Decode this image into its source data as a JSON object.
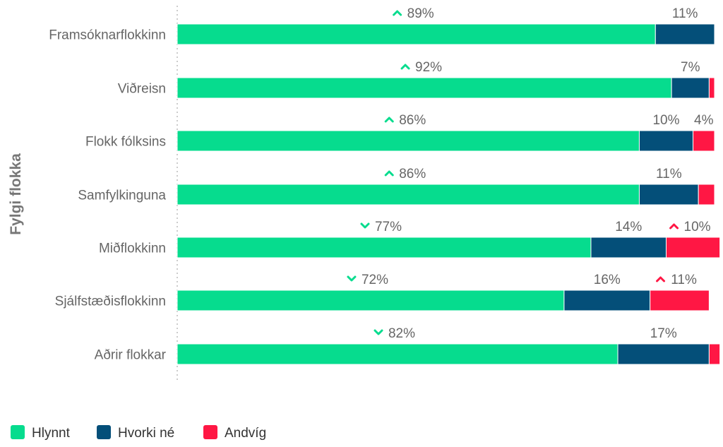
{
  "chart_data": {
    "type": "bar",
    "orientation": "horizontal",
    "stacked": true,
    "percent": true,
    "ylabel": "Fylgi flokka",
    "categories": [
      "Framsóknarflokkinn",
      "Viðreisn",
      "Flokk fólksins",
      "Samfylkinguna",
      "Miðflokkinn",
      "Sjálfstæðisflokkinn",
      "Aðrir flokkar"
    ],
    "series": [
      {
        "name": "Hlynnt",
        "color": "#06DC8E",
        "values": [
          89,
          92,
          86,
          86,
          77,
          72,
          82
        ],
        "labels": [
          "89%",
          "92%",
          "86%",
          "86%",
          "77%",
          "72%",
          "82%"
        ],
        "trend": [
          "up",
          "up",
          "up",
          "up",
          "down",
          "down",
          "down"
        ]
      },
      {
        "name": "Hvorki né",
        "color": "#044F79",
        "values": [
          11,
          7,
          10,
          11,
          14,
          16,
          17
        ],
        "labels": [
          "11%",
          "7%",
          "10%",
          "11%",
          "14%",
          "16%",
          "17%"
        ],
        "trend": [
          null,
          null,
          null,
          null,
          null,
          null,
          null
        ]
      },
      {
        "name": "Andvíg",
        "color": "#FF1744",
        "values": [
          0,
          1,
          4,
          3,
          10,
          11,
          2
        ],
        "labels": [
          null,
          null,
          "4%",
          null,
          "10%",
          "11%",
          null
        ],
        "trend": [
          null,
          null,
          null,
          null,
          "up",
          "up",
          null
        ]
      }
    ],
    "xlim": [
      0,
      100
    ],
    "legend": [
      "Hlynnt",
      "Hvorki né",
      "Andvíg"
    ],
    "legend_position": "bottom-left"
  }
}
